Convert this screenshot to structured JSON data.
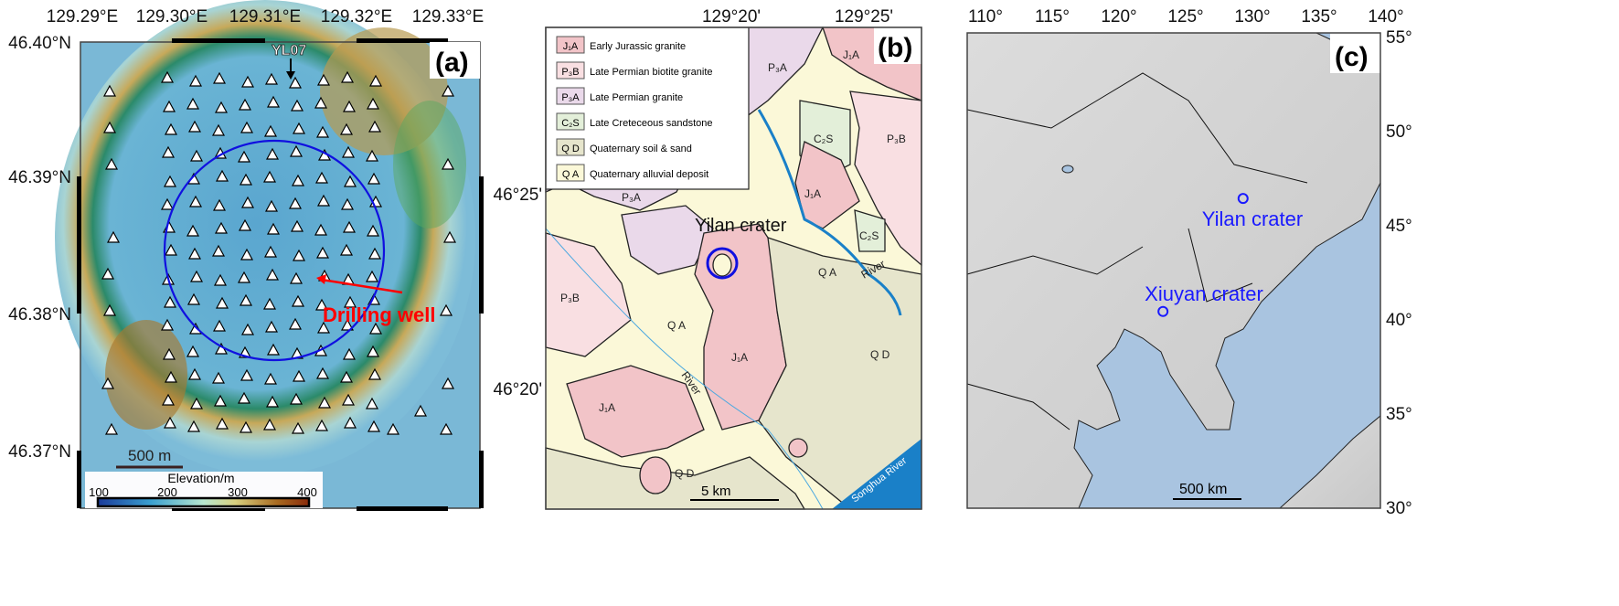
{
  "panel_a": {
    "label": "(a)",
    "lon_ticks": [
      "129.29°E",
      "129.30°E",
      "129.31°E",
      "129.32°E",
      "129.33°E"
    ],
    "lat_ticks": [
      "46.40°N",
      "46.39°N",
      "46.38°N",
      "46.37°N"
    ],
    "station_label": "YL07",
    "drilling_label": "Drilling well",
    "scale_label": "500 m",
    "colorbar": {
      "title": "Elevation/m",
      "ticks": [
        "100",
        "200",
        "300",
        "400"
      ],
      "range": [
        100,
        400
      ]
    },
    "colors": {
      "crater_circle": "#1010e0",
      "drilling": "#ff0000"
    }
  },
  "panel_b": {
    "label": "(b)",
    "lon_ticks": [
      "129°20'",
      "129°25'"
    ],
    "lat_ticks": [
      "46°25'",
      "46°20'"
    ],
    "legend": [
      {
        "code": "J₁A",
        "text": "Early Jurassic granite",
        "color": "#f2c4c8"
      },
      {
        "code": "P₃B",
        "text": "Late Permian biotite granite",
        "color": "#f9dfe2"
      },
      {
        "code": "P₃A",
        "text": "Late Permian granite",
        "color": "#ead9ea"
      },
      {
        "code": "C₂S",
        "text": "Late Creteceous sandstone",
        "color": "#e3efd9"
      },
      {
        "code": "Q D",
        "text": "Quaternary soil & sand",
        "color": "#e6e5cc"
      },
      {
        "code": "Q A",
        "text": "Quaternary alluvial deposit",
        "color": "#fbf8d8"
      }
    ],
    "map_labels": {
      "crater": "Yilan crater",
      "p3a_1": "P₃A",
      "p3a_2": "P₃A",
      "j1a_top": "J₁A",
      "c2s_1": "C₂S",
      "p3b_1": "P₃B",
      "j1a_mid": "J₁A",
      "c2s_2": "C₂S",
      "river_1": "River",
      "qa_1": "Q A",
      "p3b_2": "P₃B",
      "qa_2": "Q A",
      "j1a_low": "J₁A",
      "qd_1": "Q D",
      "river_2": "River",
      "j1a_left": "J₁A",
      "qd_2": "Q D",
      "songhua": "Songhua River"
    },
    "scale_label": "5 km"
  },
  "panel_c": {
    "label": "(c)",
    "lon_ticks": [
      "110°",
      "115°",
      "120°",
      "125°",
      "130°",
      "135°",
      "140°"
    ],
    "lat_ticks": [
      "55°",
      "50°",
      "45°",
      "40°",
      "35°",
      "30°"
    ],
    "sites": [
      {
        "name": "Yilan crater",
        "lon": 129.3,
        "lat": 46.4
      },
      {
        "name": "Xiuyan crater",
        "lon": 123.3,
        "lat": 40.4
      }
    ],
    "scale_label": "500 km",
    "colors": {
      "sea": "#a9c4e0",
      "land": "#d4d4d4",
      "site": "#1a1aff"
    }
  }
}
